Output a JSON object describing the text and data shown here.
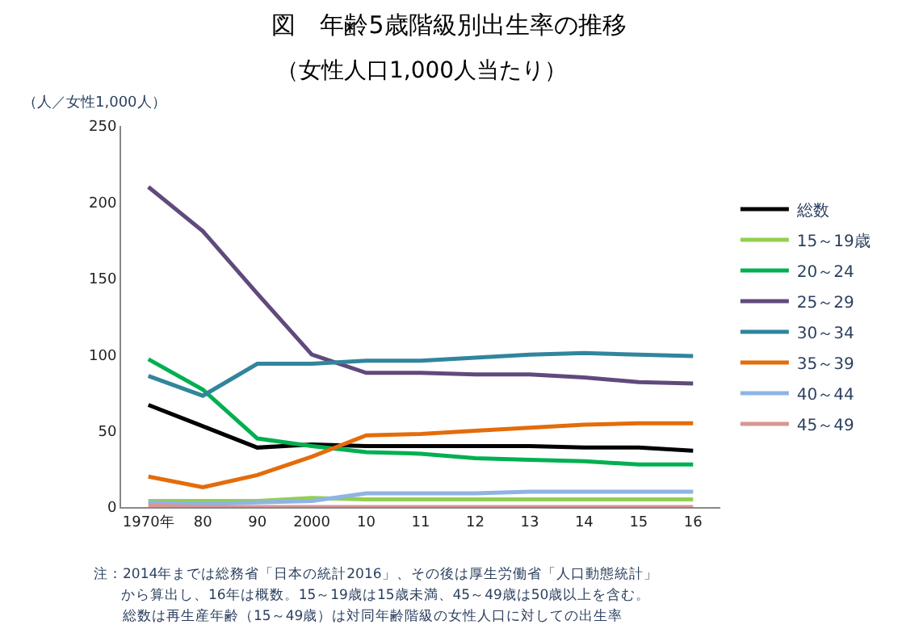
{
  "chart_data": {
    "type": "line",
    "title": "図　年齢5歳階級別出生率の推移",
    "subtitle": "（女性人口1,000人当たり）",
    "ylabel": "（人／女性1,000人）",
    "categories": [
      "1970年",
      "80",
      "90",
      "2000",
      "10",
      "11",
      "12",
      "13",
      "14",
      "15",
      "16"
    ],
    "series": [
      {
        "name": "総数",
        "color": "#000000",
        "values": [
          67,
          53,
          39,
          41,
          40,
          40,
          40,
          40,
          39,
          39,
          37
        ]
      },
      {
        "name": "15～19歳",
        "color": "#92d050",
        "values": [
          4,
          4,
          4,
          6,
          5,
          5,
          5,
          5,
          5,
          5,
          5
        ]
      },
      {
        "name": "20～24",
        "color": "#00b050",
        "values": [
          97,
          77,
          45,
          40,
          36,
          35,
          32,
          31,
          30,
          28,
          28
        ]
      },
      {
        "name": "25～29",
        "color": "#604a7b",
        "values": [
          210,
          181,
          140,
          100,
          88,
          88,
          87,
          87,
          85,
          82,
          81
        ]
      },
      {
        "name": "30～34",
        "color": "#31859c",
        "values": [
          86,
          73,
          94,
          94,
          96,
          96,
          98,
          100,
          101,
          100,
          99
        ]
      },
      {
        "name": "35～39",
        "color": "#e46c0a",
        "values": [
          20,
          13,
          21,
          33,
          47,
          48,
          50,
          52,
          54,
          55,
          55
        ]
      },
      {
        "name": "40～44",
        "color": "#8eb4e3",
        "values": [
          3,
          2,
          3,
          4,
          9,
          9,
          9,
          10,
          10,
          10,
          10
        ]
      },
      {
        "name": "45～49",
        "color": "#d99694",
        "values": [
          1,
          0,
          0,
          0,
          0,
          0,
          0,
          0,
          0,
          0,
          0
        ]
      }
    ],
    "ylim": [
      0,
      250
    ],
    "yticks": [
      0,
      50,
      100,
      150,
      200,
      250
    ],
    "legend": "right",
    "marker": "none",
    "line_style": "solid",
    "annotations": [
      "注：2014年までは総務省「日本の統計2016」、その後は厚生労働省「人口動態統計」",
      "から算出し、16年は概数。15～19歳は15歳未満、45～49歳は50歳以上を含む。",
      "総数は再生産年齢（15～49歳）は対同年齢階級の女性人口に対しての出生率"
    ]
  }
}
